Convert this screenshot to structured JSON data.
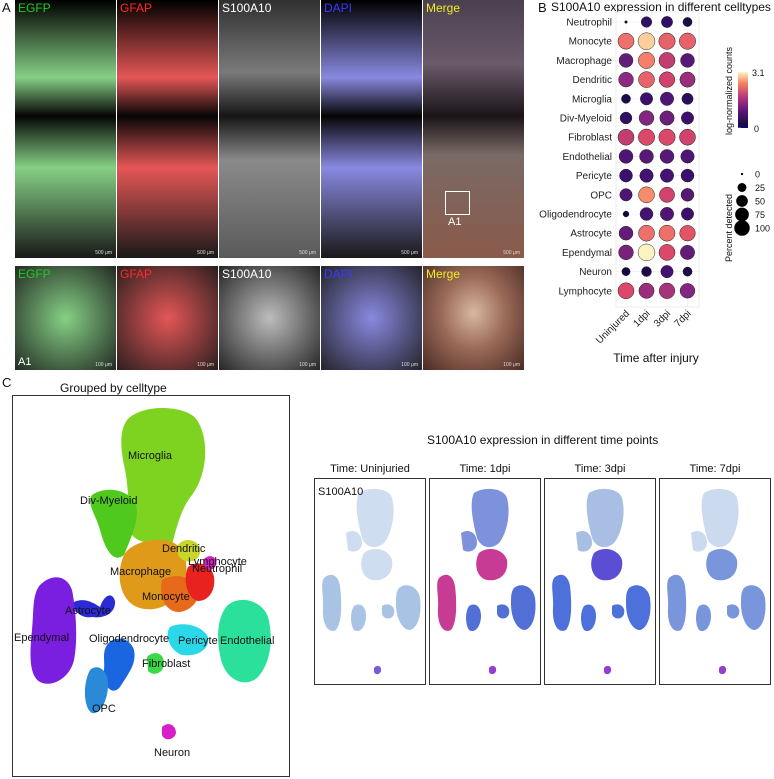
{
  "panel_labels": {
    "a": "A",
    "b": "B",
    "c": "C"
  },
  "panel_a": {
    "channels": [
      {
        "name": "EGFP",
        "color": "#22cc22"
      },
      {
        "name": "GFAP",
        "color": "#ff2a2a"
      },
      {
        "name": "S100A10",
        "color": "#ffffff"
      },
      {
        "name": "DAPI",
        "color": "#3a3aff"
      },
      {
        "name": "Merge",
        "color": "#eeee22"
      }
    ],
    "scalebar_top": "500 μm",
    "scalebar_bottom": "100 μm",
    "inset_label": "A1",
    "inset_row_label": "A1"
  },
  "panel_b": {
    "title": "S100A10 expression in different celltypes",
    "xlabel": "Time after injury",
    "colorbar_title": "log-normalized counts",
    "colorbar_max": "3.1",
    "colorbar_min": "0",
    "size_legend_title": "Percent detected",
    "size_legend_values": [
      "0",
      "25",
      "50",
      "75",
      "100"
    ]
  },
  "chart_data": {
    "type": "dotplot",
    "title": "S100A10 expression in different celltypes",
    "xlabel": "Time after injury",
    "categories": [
      "Uninjured",
      "1dpi",
      "3dpi",
      "7dpi"
    ],
    "rows": [
      "Neutrophil",
      "Monocyte",
      "Macrophage",
      "Dendritic",
      "Microglia",
      "Div-Myeloid",
      "Fibroblast",
      "Endothelial",
      "Pericyte",
      "OPC",
      "Oligodendrocyte",
      "Astrocyte",
      "Ependymal",
      "Neuron",
      "Lymphocyte"
    ],
    "expression": [
      [
        0.0,
        0.5,
        0.5,
        0.2
      ],
      [
        2.3,
        2.9,
        2.2,
        2.2
      ],
      [
        1.0,
        2.4,
        1.8,
        0.9
      ],
      [
        1.4,
        2.2,
        1.9,
        1.5
      ],
      [
        0.2,
        0.6,
        0.8,
        0.4
      ],
      [
        0.5,
        1.3,
        1.1,
        0.6
      ],
      [
        1.8,
        2.0,
        2.0,
        1.9
      ],
      [
        0.8,
        0.9,
        0.9,
        0.8
      ],
      [
        0.6,
        0.7,
        0.7,
        0.6
      ],
      [
        0.8,
        2.5,
        1.9,
        0.9
      ],
      [
        0.0,
        0.7,
        0.8,
        0.6
      ],
      [
        1.0,
        2.3,
        2.3,
        2.1
      ],
      [
        1.2,
        3.1,
        2.0,
        1.0
      ],
      [
        0.1,
        0.2,
        0.7,
        0.2
      ],
      [
        2.0,
        1.5,
        1.6,
        1.3
      ]
    ],
    "percent": [
      [
        0,
        30,
        35,
        20
      ],
      [
        85,
        95,
        90,
        90
      ],
      [
        60,
        90,
        85,
        60
      ],
      [
        70,
        85,
        80,
        75
      ],
      [
        20,
        45,
        55,
        35
      ],
      [
        40,
        70,
        65,
        45
      ],
      [
        85,
        90,
        90,
        85
      ],
      [
        60,
        60,
        60,
        55
      ],
      [
        50,
        55,
        55,
        50
      ],
      [
        45,
        85,
        75,
        50
      ],
      [
        5,
        50,
        55,
        45
      ],
      [
        60,
        85,
        85,
        80
      ],
      [
        70,
        95,
        85,
        65
      ],
      [
        15,
        25,
        45,
        20
      ],
      [
        85,
        75,
        80,
        70
      ]
    ],
    "colorbar_range": [
      0,
      3.1
    ],
    "percent_legend": [
      0,
      25,
      50,
      75,
      100
    ]
  },
  "panel_c": {
    "umap_title": "Grouped by celltype",
    "time_title": "S100A10 expression in different time points",
    "celltype_labels": [
      {
        "name": "Microglia",
        "color": "#7ed321"
      },
      {
        "name": "Div-Myeloid",
        "color": "#4fc91e"
      },
      {
        "name": "Dendritic",
        "color": "#c9d62a"
      },
      {
        "name": "Lymphocyte",
        "color": "#d8d83a"
      },
      {
        "name": "Macrophage",
        "color": "#e09a1a"
      },
      {
        "name": "Neutrophil",
        "color": "#e8221e"
      },
      {
        "name": "Monocyte",
        "color": "#e66a1a"
      },
      {
        "name": "Astrocyte",
        "color": "#2b2bd6"
      },
      {
        "name": "Ependymal",
        "color": "#7a1ee0"
      },
      {
        "name": "Oligodendrocyte",
        "color": "#1a66e0"
      },
      {
        "name": "Pericyte",
        "color": "#2ad8e8"
      },
      {
        "name": "Endothelial",
        "color": "#2ae09a"
      },
      {
        "name": "Fibroblast",
        "color": "#3ad848"
      },
      {
        "name": "OPC",
        "color": "#2a8ad8"
      },
      {
        "name": "Neuron",
        "color": "#d81ec8"
      }
    ],
    "time_panels": [
      "Time: Uninjuried",
      "Time: 1dpi",
      "Time: 3dpi",
      "Time: 7dpi"
    ],
    "gene_label": "S100A10"
  }
}
